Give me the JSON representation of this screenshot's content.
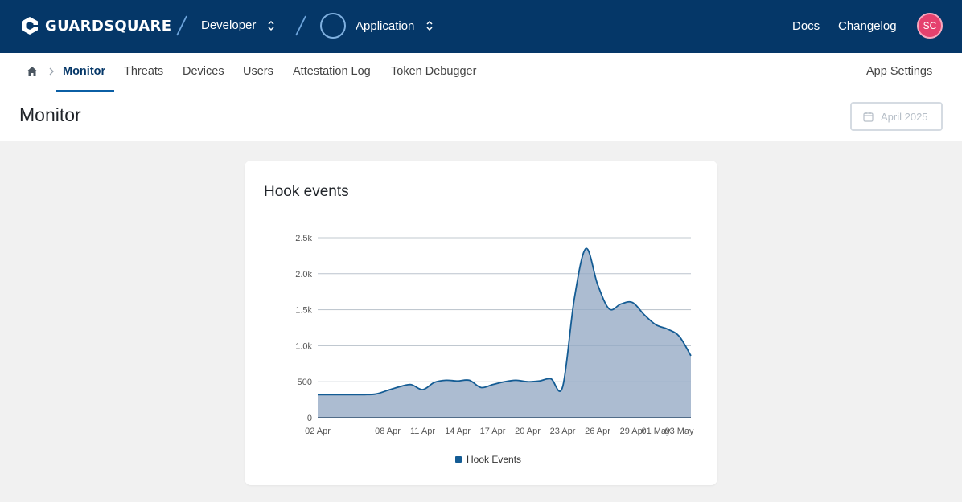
{
  "topbar": {
    "brand": "GUARDSQUARE",
    "org": "Developer",
    "app": "Application",
    "links": [
      "Docs",
      "Changelog"
    ],
    "avatar_initials": "SC"
  },
  "tabs": {
    "items": [
      "Monitor",
      "Threats",
      "Devices",
      "Users",
      "Attestation Log",
      "Token Debugger"
    ],
    "active": "Monitor",
    "right": "App Settings"
  },
  "page": {
    "title": "Monitor",
    "date_label": "April 2025"
  },
  "card": {
    "title": "Hook events"
  },
  "colors": {
    "topbar": "#053768",
    "accent": "#0b5fa5",
    "series_line": "#145c94",
    "series_fill": "#a8b8cf",
    "avatar": "#e5416e"
  },
  "chart_data": {
    "type": "area",
    "x_tick_labels": [
      "02 Apr",
      "08 Apr",
      "11 Apr",
      "14 Apr",
      "17 Apr",
      "20 Apr",
      "23 Apr",
      "26 Apr",
      "29 Apr",
      "01 May",
      "03 May"
    ],
    "y_tick_labels": [
      "0",
      "500",
      "1.0k",
      "1.5k",
      "2.0k",
      "2.5k"
    ],
    "ylim": [
      0,
      2500
    ],
    "grid": true,
    "legend_position": "bottom-center",
    "series": [
      {
        "name": "Hook Events",
        "x": [
          "02 Apr",
          "03 Apr",
          "04 Apr",
          "05 Apr",
          "06 Apr",
          "07 Apr",
          "08 Apr",
          "09 Apr",
          "10 Apr",
          "11 Apr",
          "12 Apr",
          "13 Apr",
          "14 Apr",
          "15 Apr",
          "16 Apr",
          "17 Apr",
          "18 Apr",
          "19 Apr",
          "20 Apr",
          "21 Apr",
          "22 Apr",
          "23 Apr",
          "24 Apr",
          "25 Apr",
          "26 Apr",
          "27 Apr",
          "28 Apr",
          "29 Apr",
          "30 Apr",
          "01 May",
          "02 May",
          "03 May",
          "04 May"
        ],
        "values": [
          320,
          320,
          320,
          320,
          320,
          330,
          380,
          430,
          460,
          390,
          490,
          520,
          510,
          520,
          420,
          460,
          500,
          520,
          500,
          510,
          540,
          430,
          1650,
          2350,
          1850,
          1510,
          1580,
          1600,
          1430,
          1290,
          1230,
          1130,
          860
        ]
      }
    ]
  }
}
